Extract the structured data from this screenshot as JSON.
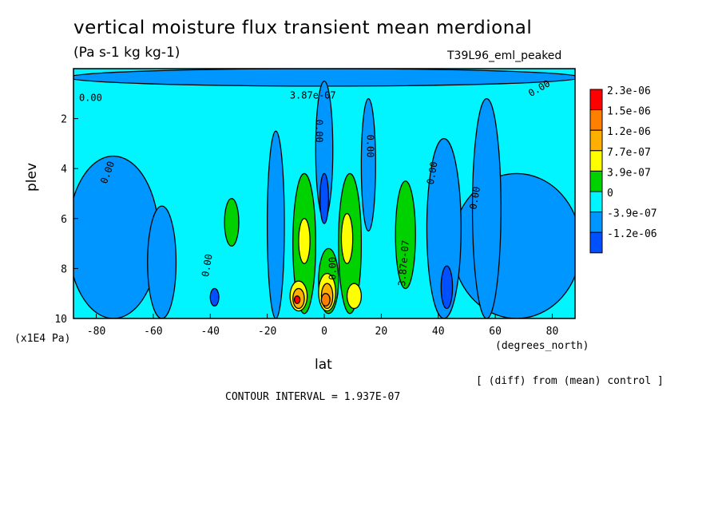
{
  "title": "vertical moisture flux transient mean merdional",
  "units": "(Pa s-1 kg kg-1)",
  "run_label": "T39L96_eml_peaked",
  "y_units": "(x1E4 Pa)",
  "x_units": "(degrees_north)",
  "diff_note": "[ (diff) from (mean) control ]",
  "contour_interval": "CONTOUR INTERVAL = 1.937E-07",
  "chart_data": {
    "type": "heatmap",
    "xlabel": "lat",
    "ylabel": "plev",
    "xlim": [
      -88,
      88
    ],
    "ylim": [
      10,
      0
    ],
    "x_ticks": [
      -80,
      -60,
      -40,
      -20,
      0,
      20,
      40,
      60,
      80
    ],
    "y_ticks": [
      2,
      4,
      6,
      8,
      10
    ],
    "legend": {
      "labels": [
        "2.3e-06",
        "1.5e-06",
        "1.2e-06",
        "7.7e-07",
        "3.9e-07",
        "0",
        "-3.9e-07",
        "-1.2e-06"
      ],
      "colors": [
        "#ff0000",
        "#ff7f00",
        "#ffaf00",
        "#ffff00",
        "#00d200",
        "#00f5ff",
        "#0096ff",
        "#0050ff"
      ]
    },
    "contour_labels": [
      "0.00",
      "0.00",
      "0.00",
      "0.00",
      "0.00",
      "0.00",
      "0.00",
      "0.00",
      "0.00",
      "3.87e-07",
      "3.87e-07"
    ],
    "regions": [
      {
        "level": "-3.9e-07",
        "lat": [
          -90,
          -58
        ],
        "plev": [
          3.5,
          10
        ]
      },
      {
        "level": "-3.9e-07",
        "lat": [
          -62,
          -52
        ],
        "plev": [
          5.5,
          10
        ]
      },
      {
        "level": "-3.9e-07",
        "lat": [
          45,
          90
        ],
        "plev": [
          4.2,
          10
        ]
      },
      {
        "level": "-3.9e-07",
        "lat": [
          52,
          62
        ],
        "plev": [
          1.2,
          10
        ]
      },
      {
        "level": "-3.9e-07",
        "lat": [
          -90,
          90
        ],
        "plev": [
          0,
          0.7
        ]
      },
      {
        "level": "-3.9e-07",
        "lat": [
          -20,
          -14
        ],
        "plev": [
          2.5,
          10
        ]
      },
      {
        "level": "-3.9e-07",
        "lat": [
          -3,
          3
        ],
        "plev": [
          0.5,
          6
        ]
      },
      {
        "level": "-3.9e-07",
        "lat": [
          13,
          18
        ],
        "plev": [
          1.2,
          6.5
        ]
      },
      {
        "level": "-3.9e-07",
        "lat": [
          36,
          48
        ],
        "plev": [
          2.8,
          10
        ]
      },
      {
        "level": "-1.2e-06",
        "lat": [
          -1.5,
          1.5
        ],
        "plev": [
          4.2,
          6.2
        ]
      },
      {
        "level": "-1.2e-06",
        "lat": [
          -40,
          -37
        ],
        "plev": [
          8.8,
          9.5
        ]
      },
      {
        "level": "-1.2e-06",
        "lat": [
          41,
          45
        ],
        "plev": [
          7.9,
          9.6
        ]
      },
      {
        "level": "3.9e-07",
        "lat": [
          -11,
          -3
        ],
        "plev": [
          4.2,
          9.8
        ]
      },
      {
        "level": "3.9e-07",
        "lat": [
          5,
          13
        ],
        "plev": [
          4.2,
          9.8
        ]
      },
      {
        "level": "3.9e-07",
        "lat": [
          -35,
          -30
        ],
        "plev": [
          5.2,
          7.1
        ]
      },
      {
        "level": "3.9e-07",
        "lat": [
          25,
          32
        ],
        "plev": [
          4.5,
          8.8
        ]
      },
      {
        "level": "3.9e-07",
        "lat": [
          -2,
          5
        ],
        "plev": [
          7.2,
          9.8
        ]
      },
      {
        "level": "7.7e-07",
        "lat": [
          -9,
          -5
        ],
        "plev": [
          6,
          7.8
        ]
      },
      {
        "level": "7.7e-07",
        "lat": [
          6,
          10
        ],
        "plev": [
          5.8,
          7.8
        ]
      },
      {
        "level": "7.7e-07",
        "lat": [
          -12,
          -6
        ],
        "plev": [
          8.5,
          9.7
        ]
      },
      {
        "level": "7.7e-07",
        "lat": [
          -2,
          4
        ],
        "plev": [
          8.2,
          9.7
        ]
      },
      {
        "level": "7.7e-07",
        "lat": [
          8,
          13
        ],
        "plev": [
          8.6,
          9.6
        ]
      },
      {
        "level": "1.2e-06",
        "lat": [
          -11,
          -7
        ],
        "plev": [
          8.8,
          9.6
        ]
      },
      {
        "level": "1.2e-06",
        "lat": [
          -1,
          3
        ],
        "plev": [
          8.6,
          9.6
        ]
      },
      {
        "level": "1.5e-06",
        "lat": [
          -1,
          2
        ],
        "plev": [
          9.0,
          9.5
        ]
      },
      {
        "level": "2.3e-06",
        "lat": [
          -10.5,
          -8.5
        ],
        "plev": [
          9.1,
          9.4
        ]
      }
    ]
  }
}
